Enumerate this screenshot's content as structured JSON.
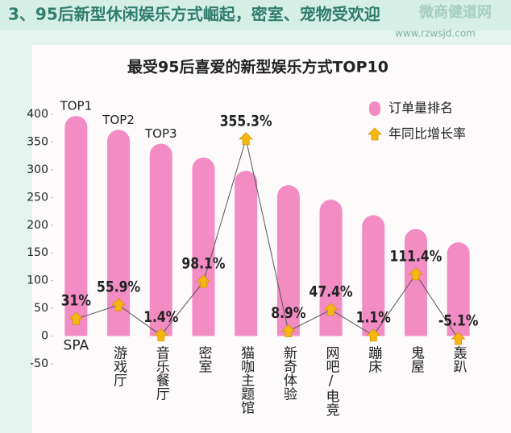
{
  "header": {
    "title": "3、95后新型休闲娱乐方式崛起，密室、宠物受欢迎",
    "watermark": "微商健道网",
    "watermark_url": "www.rzwsjd.com"
  },
  "chart_data": {
    "type": "combo",
    "title": "最受95后喜爱的新型娱乐方式TOP10",
    "categories": [
      "SPA",
      "游戏厅",
      "音乐餐厅",
      "密室",
      "猫咖主题馆",
      "新奇体验",
      "网吧/电竞",
      "蹦床",
      "鬼屋",
      "轰趴"
    ],
    "series": [
      {
        "name": "订单量排名",
        "type": "bar",
        "color": "#f28cc3",
        "values": [
          397,
          372,
          347,
          322,
          298,
          272,
          246,
          218,
          193,
          169
        ]
      },
      {
        "name": "年同比增长率",
        "type": "line",
        "color": "#f5b70f",
        "values": [
          31,
          55.9,
          1.4,
          98.1,
          355.3,
          8.9,
          47.4,
          1.1,
          111.4,
          -5.1
        ],
        "value_labels": [
          "31%",
          "55.9%",
          "1.4%",
          "98.1%",
          "355.3%",
          "8.9%",
          "47.4%",
          "1.1%",
          "111.4%",
          "-5.1%"
        ]
      }
    ],
    "annotations": [
      {
        "index": 0,
        "text": "TOP1"
      },
      {
        "index": 1,
        "text": "TOP2"
      },
      {
        "index": 2,
        "text": "TOP3"
      }
    ],
    "ylim": [
      -50,
      400
    ],
    "yticks": [
      -50,
      0,
      50,
      100,
      150,
      200,
      250,
      300,
      350,
      400
    ],
    "legend": "top-right"
  }
}
